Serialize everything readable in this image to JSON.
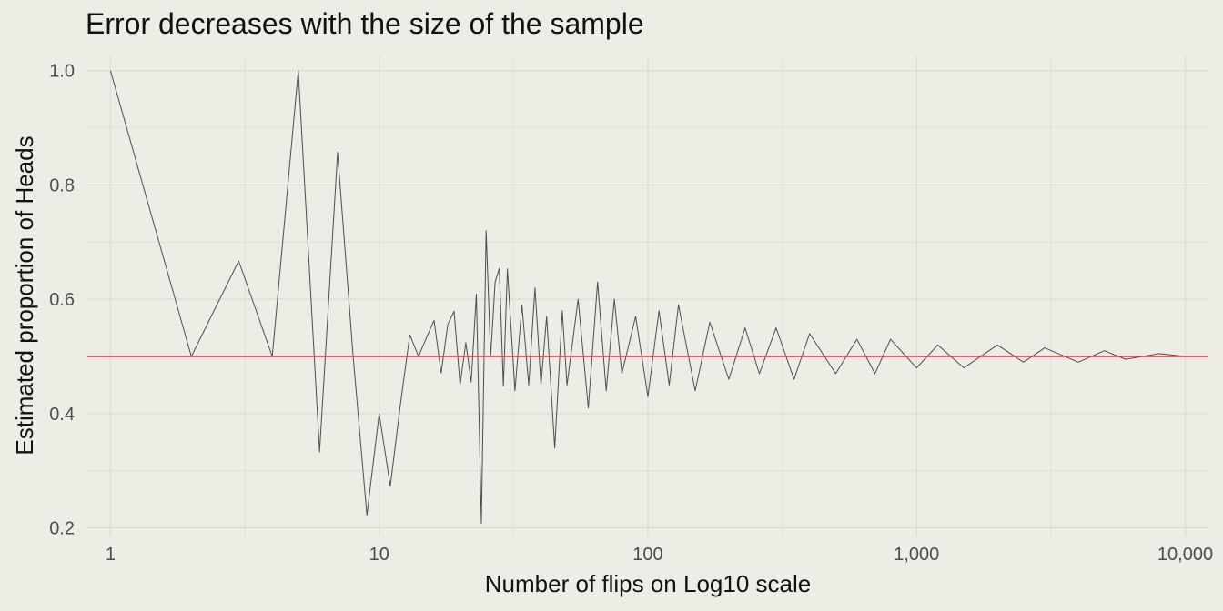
{
  "chart_data": {
    "type": "line",
    "title": "Error decreases with the size of the sample",
    "xlabel": "Number of flips on Log10 scale",
    "ylabel": "Estimated proportion of Heads",
    "x_scale": "log10",
    "xlim": [
      0.82,
      12200
    ],
    "ylim": [
      0.185,
      1.025
    ],
    "x_ticks": [
      1,
      10,
      100,
      1000,
      10000
    ],
    "x_tick_labels": [
      "1",
      "10",
      "100",
      "1,000",
      "10,000"
    ],
    "y_ticks": [
      0.2,
      0.4,
      0.6,
      0.8,
      1.0
    ],
    "y_tick_labels": [
      "0.2",
      "0.4",
      "0.6",
      "0.8",
      "1.0"
    ],
    "grid": true,
    "series": [
      {
        "color": "#4d4d4d",
        "x": [
          1,
          2,
          3,
          4,
          5,
          6,
          7,
          8,
          9,
          10,
          11,
          12,
          13,
          14,
          15,
          16,
          17,
          18,
          19,
          20,
          21,
          22,
          23,
          24,
          25,
          26,
          27,
          28,
          29,
          30,
          32,
          34,
          36,
          38,
          40,
          42,
          45,
          48,
          50,
          55,
          60,
          65,
          70,
          75,
          80,
          90,
          100,
          110,
          120,
          130,
          150,
          170,
          200,
          230,
          260,
          300,
          350,
          400,
          500,
          600,
          700,
          800,
          1000,
          1200,
          1500,
          2000,
          2500,
          3000,
          4000,
          5000,
          6000,
          8000,
          10000
        ],
        "y": [
          1.0,
          0.5,
          0.667,
          0.5,
          1.0,
          0.333,
          0.857,
          0.5,
          0.222,
          0.4,
          0.273,
          0.417,
          0.538,
          0.5,
          0.533,
          0.563,
          0.471,
          0.556,
          0.579,
          0.45,
          0.524,
          0.455,
          0.609,
          0.208,
          0.72,
          0.5,
          0.63,
          0.654,
          0.448,
          0.653,
          0.44,
          0.59,
          0.45,
          0.62,
          0.45,
          0.57,
          0.34,
          0.58,
          0.45,
          0.6,
          0.41,
          0.63,
          0.44,
          0.6,
          0.47,
          0.57,
          0.43,
          0.58,
          0.45,
          0.59,
          0.44,
          0.56,
          0.46,
          0.55,
          0.47,
          0.55,
          0.46,
          0.54,
          0.47,
          0.53,
          0.47,
          0.53,
          0.48,
          0.52,
          0.48,
          0.52,
          0.49,
          0.515,
          0.49,
          0.51,
          0.495,
          0.505,
          0.5
        ]
      },
      {
        "color": "#e8333b",
        "x": [
          0.82,
          12200
        ],
        "y": [
          0.5,
          0.5
        ]
      }
    ]
  }
}
